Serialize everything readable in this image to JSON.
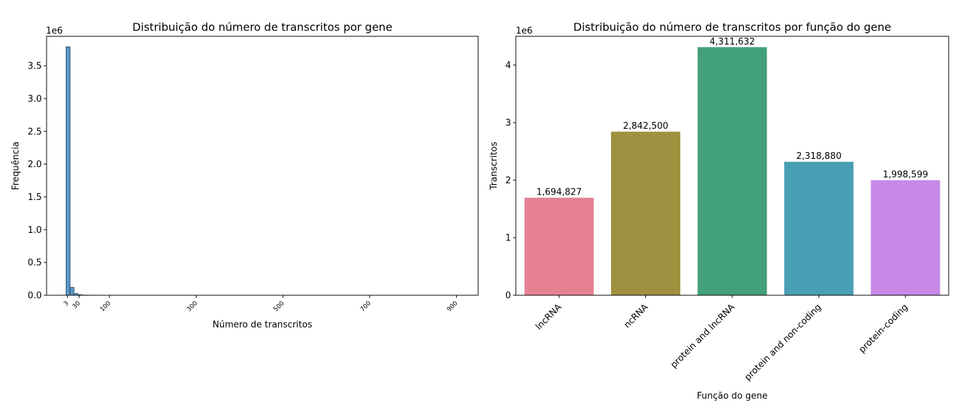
{
  "chart_data": [
    {
      "type": "bar",
      "subtype": "histogram",
      "title": "Distribuição do número de transcritos por gene",
      "xlabel": "Número de transcritos",
      "ylabel": "Frequência",
      "y_offset_label": "1e6",
      "xlim": [
        -45,
        950
      ],
      "ylim": [
        0,
        3.95
      ],
      "x_ticks": [
        3,
        30,
        100,
        300,
        500,
        700,
        900
      ],
      "x_tick_labels": [
        "3",
        "30",
        "100",
        "300",
        "500",
        "700",
        "900"
      ],
      "y_ticks": [
        0.0,
        0.5,
        1.0,
        1.5,
        2.0,
        2.5,
        3.0,
        3.5
      ],
      "y_tick_labels": [
        "0.0",
        "0.5",
        "1.0",
        "1.5",
        "2.0",
        "2.5",
        "3.0",
        "3.5"
      ],
      "bin_width": 9.1,
      "bins": [
        {
          "x0": 0.0,
          "value": 3.79
        },
        {
          "x0": 9.1,
          "value": 0.12
        },
        {
          "x0": 18.2,
          "value": 0.025
        },
        {
          "x0": 27.3,
          "value": 0.008
        },
        {
          "x0": 36.4,
          "value": 0.003
        },
        {
          "x0": 45.5,
          "value": 0.0015
        }
      ],
      "color": "#1f77b4",
      "grid": false
    },
    {
      "type": "bar",
      "title": "Distribuição do número de transcritos por função do gene",
      "xlabel": "Função do gene",
      "ylabel": "Transcritos",
      "y_offset_label": "1e6",
      "ylim": [
        0,
        4.5
      ],
      "y_ticks": [
        0,
        1,
        2,
        3,
        4
      ],
      "y_tick_labels": [
        "0",
        "1",
        "2",
        "3",
        "4"
      ],
      "categories": [
        "lncRNA",
        "ncRNA",
        "protein and lncRNA",
        "protein and non-coding",
        "protein-coding"
      ],
      "values": [
        1694827,
        2842500,
        4311632,
        2318880,
        1998599
      ],
      "value_labels": [
        "1,694,827",
        "2,842,500",
        "4,311,632",
        "2,318,880",
        "1,998,599"
      ],
      "colors": [
        "#e68193",
        "#9f913f",
        "#42a07a",
        "#499fb4",
        "#c689e6"
      ],
      "grid": false
    }
  ]
}
